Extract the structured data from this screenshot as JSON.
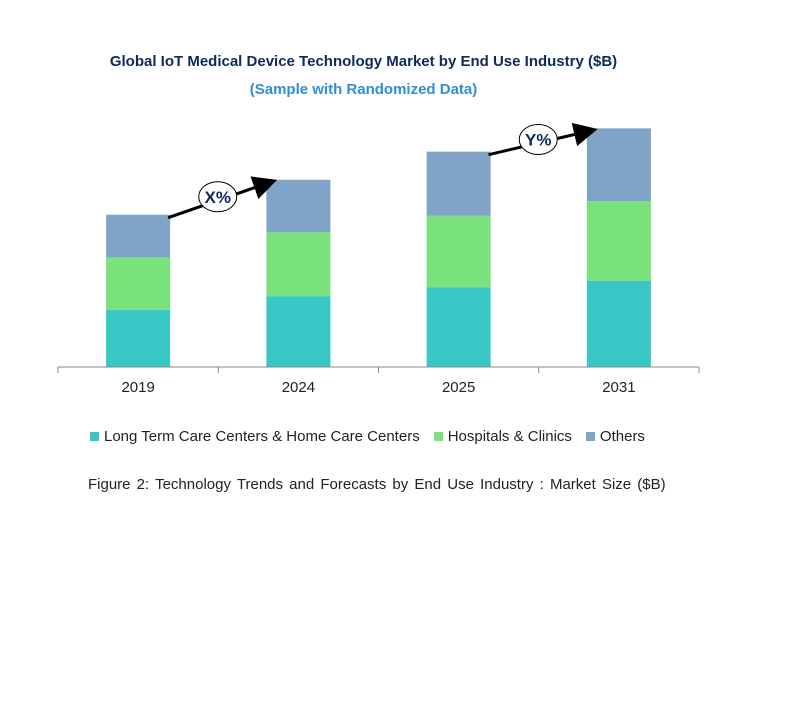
{
  "chart_data": {
    "type": "bar",
    "stacked": true,
    "title": "Global IoT Medical Device Technology Market by End Use Industry ($B)",
    "subtitle": "(Sample with Randomized Data)",
    "categories": [
      "2019",
      "2024",
      "2025",
      "2031"
    ],
    "series": [
      {
        "name": "Long Term Care Centers & Home Care Centers",
        "color": "#38c7c4",
        "values": [
          5.9,
          7.3,
          8.2,
          8.9
        ]
      },
      {
        "name": "Hospitals & Clinics",
        "color": "#7ae27d",
        "values": [
          5.4,
          6.6,
          7.4,
          8.2
        ]
      },
      {
        "name": "Others",
        "color": "#7fa4c8",
        "values": [
          4.4,
          5.4,
          6.6,
          7.5
        ]
      }
    ],
    "ylim": [
      0,
      25
    ],
    "y_axis_shown": false,
    "grid": false,
    "legend_placement": "bottom",
    "annotations": [
      {
        "label": "X%",
        "from": "2019",
        "to": "2024"
      },
      {
        "label": "Y%",
        "from": "2025",
        "to": "2031"
      }
    ],
    "caption": "Figure 2: Technology  Trends  and Forecasts by  End Use Industry  : Market Size ($B)"
  }
}
